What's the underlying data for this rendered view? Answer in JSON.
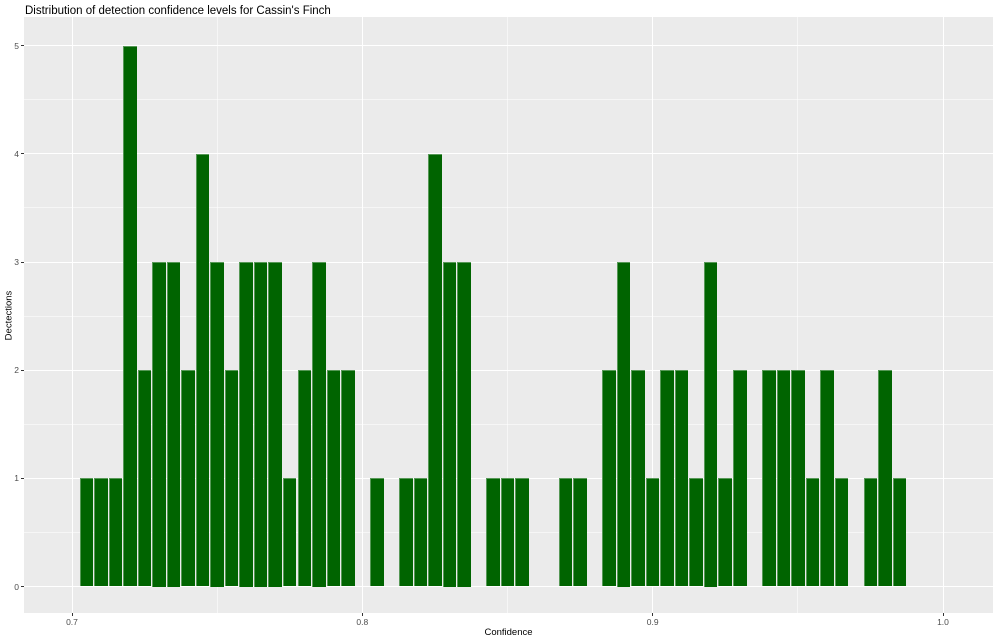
{
  "title": "Distribution of detection confidence levels for Cassin's Finch",
  "chart_data": {
    "type": "bar",
    "subtype": "histogram",
    "title": "Distribution of detection confidence levels for Cassin's Finch",
    "xlabel": "Confidence",
    "ylabel": "Dectections",
    "grid": "on",
    "legend_position": "none",
    "xlim": [
      0.6835,
      1.0172
    ],
    "ylim": [
      -0.265,
      5.266
    ],
    "x_ticks": {
      "values": [
        0.7,
        0.8,
        0.9,
        1.0
      ],
      "labels": [
        "0.7",
        "0.8",
        "0.9",
        "1.0"
      ]
    },
    "y_ticks": {
      "values": [
        0,
        1,
        2,
        3,
        4,
        5
      ],
      "labels": [
        "0",
        "1",
        "2",
        "3",
        "4",
        "5"
      ]
    },
    "bin_width": 0.005,
    "bin_centers": [
      0.705,
      0.71,
      0.715,
      0.72,
      0.725,
      0.73,
      0.735,
      0.74,
      0.745,
      0.75,
      0.755,
      0.76,
      0.765,
      0.77,
      0.775,
      0.78,
      0.785,
      0.79,
      0.795,
      0.8,
      0.805,
      0.81,
      0.815,
      0.82,
      0.825,
      0.83,
      0.835,
      0.84,
      0.845,
      0.85,
      0.855,
      0.86,
      0.865,
      0.87,
      0.875,
      0.88,
      0.885,
      0.89,
      0.895,
      0.9,
      0.905,
      0.91,
      0.915,
      0.92,
      0.925,
      0.93,
      0.935,
      0.94,
      0.945,
      0.95,
      0.955,
      0.96,
      0.965,
      0.97,
      0.975,
      0.98,
      0.985
    ],
    "counts": [
      1,
      1,
      1,
      5,
      2,
      3,
      3,
      2,
      4,
      3,
      2,
      3,
      3,
      3,
      1,
      2,
      3,
      2,
      2,
      0,
      1,
      0,
      1,
      1,
      4,
      3,
      3,
      0,
      1,
      1,
      1,
      0,
      0,
      1,
      1,
      0,
      2,
      3,
      2,
      1,
      2,
      2,
      1,
      3,
      1,
      2,
      0,
      2,
      2,
      2,
      1,
      2,
      1,
      0,
      1,
      2,
      1
    ],
    "colors": {
      "bar": "#006400",
      "panel_bg": "#EBEBEB",
      "grid": "#FFFFFF",
      "tick": "#333333",
      "tick_label": "#4D4D4D",
      "text": "#000000"
    }
  }
}
